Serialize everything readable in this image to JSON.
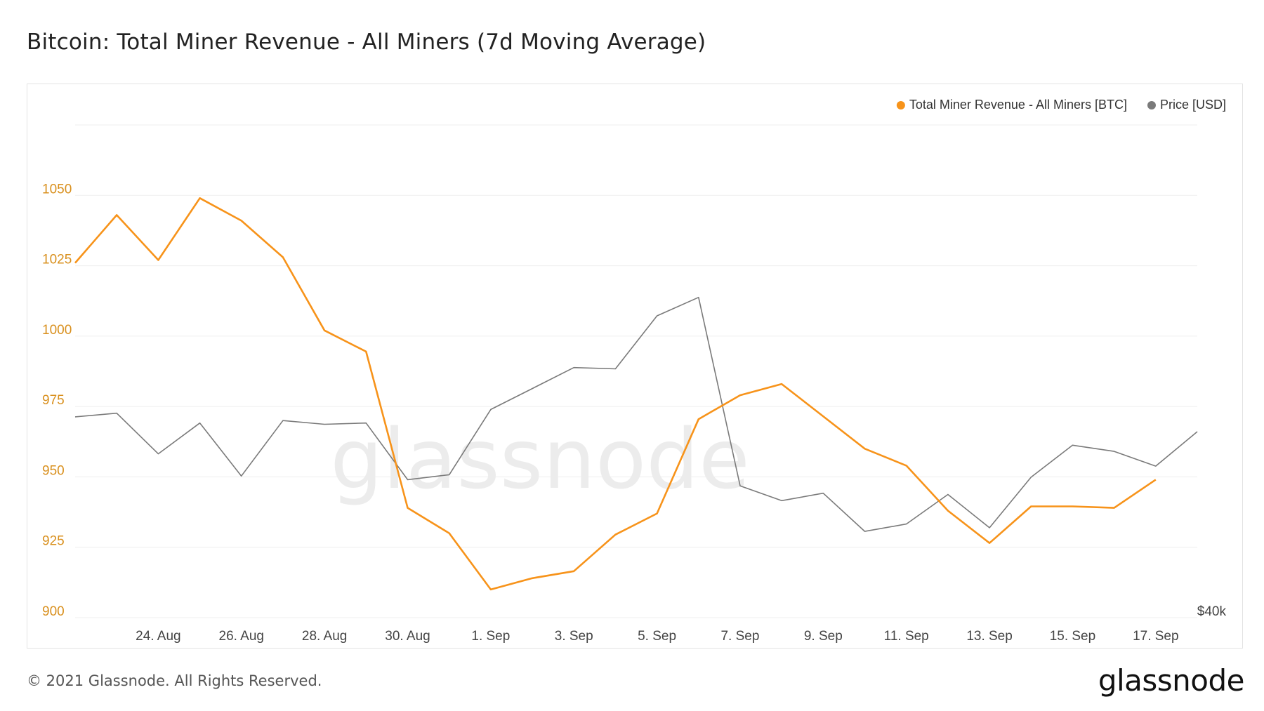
{
  "title": "Bitcoin: Total Miner Revenue - All Miners (7d Moving Average)",
  "footer": {
    "copyright": "© 2021 Glassnode. All Rights Reserved.",
    "logo": "glassnode"
  },
  "watermark": "glassnode",
  "colors": {
    "revenue": "#f7931a",
    "price": "#7a7a7a",
    "axis_left": "#d9901e",
    "grid": "#efefef",
    "tick": "#444444"
  },
  "chart_data": {
    "type": "line",
    "x": [
      "2021-08-22",
      "2021-08-23",
      "2021-08-24",
      "2021-08-25",
      "2021-08-26",
      "2021-08-27",
      "2021-08-28",
      "2021-08-29",
      "2021-08-30",
      "2021-08-31",
      "2021-09-01",
      "2021-09-02",
      "2021-09-03",
      "2021-09-04",
      "2021-09-05",
      "2021-09-06",
      "2021-09-07",
      "2021-09-08",
      "2021-09-09",
      "2021-09-10",
      "2021-09-11",
      "2021-09-12",
      "2021-09-13",
      "2021-09-14",
      "2021-09-15",
      "2021-09-16",
      "2021-09-17",
      "2021-09-18"
    ],
    "x_tick_labels": [
      "24. Aug",
      "26. Aug",
      "28. Aug",
      "30. Aug",
      "1. Sep",
      "3. Sep",
      "5. Sep",
      "7. Sep",
      "9. Sep",
      "11. Sep",
      "13. Sep",
      "15. Sep",
      "17. Sep"
    ],
    "x_tick_dates": [
      "2021-08-24",
      "2021-08-26",
      "2021-08-28",
      "2021-08-30",
      "2021-09-01",
      "2021-09-03",
      "2021-09-05",
      "2021-09-07",
      "2021-09-09",
      "2021-09-11",
      "2021-09-13",
      "2021-09-15",
      "2021-09-17"
    ],
    "y_left": {
      "ticks": [
        900,
        925,
        950,
        975,
        1000,
        1025,
        1050
      ],
      "tick_labels": [
        "900",
        "925",
        "950",
        "975",
        "1000",
        "1025",
        "1050"
      ],
      "range": [
        900,
        1075
      ]
    },
    "y_right": {
      "tick_labels": [
        "$40k"
      ],
      "range": [
        40000,
        60000
      ]
    },
    "legend_position": "top-right",
    "grid": true,
    "series": [
      {
        "name": "Total Miner Revenue - All Miners [BTC]",
        "axis": "left",
        "color": "#f7931a",
        "values": [
          1026,
          1043,
          1027,
          1049,
          1041,
          1028,
          1002,
          994.5,
          939,
          930,
          910,
          914,
          916.5,
          929.5,
          937,
          970.5,
          979,
          983,
          null,
          960,
          954,
          938,
          926.5,
          939.5,
          939.5,
          939,
          949,
          null
        ]
      },
      {
        "name": "Price [USD]",
        "axis": "right",
        "color": "#7a7a7a",
        "values": [
          48150,
          48300,
          46650,
          47900,
          45750,
          48000,
          47850,
          47900,
          45600,
          45800,
          48450,
          49300,
          50150,
          50100,
          52250,
          53000,
          45350,
          44750,
          45050,
          43500,
          43800,
          45000,
          43650,
          45700,
          47000,
          46750,
          46150,
          47550
        ]
      }
    ]
  }
}
